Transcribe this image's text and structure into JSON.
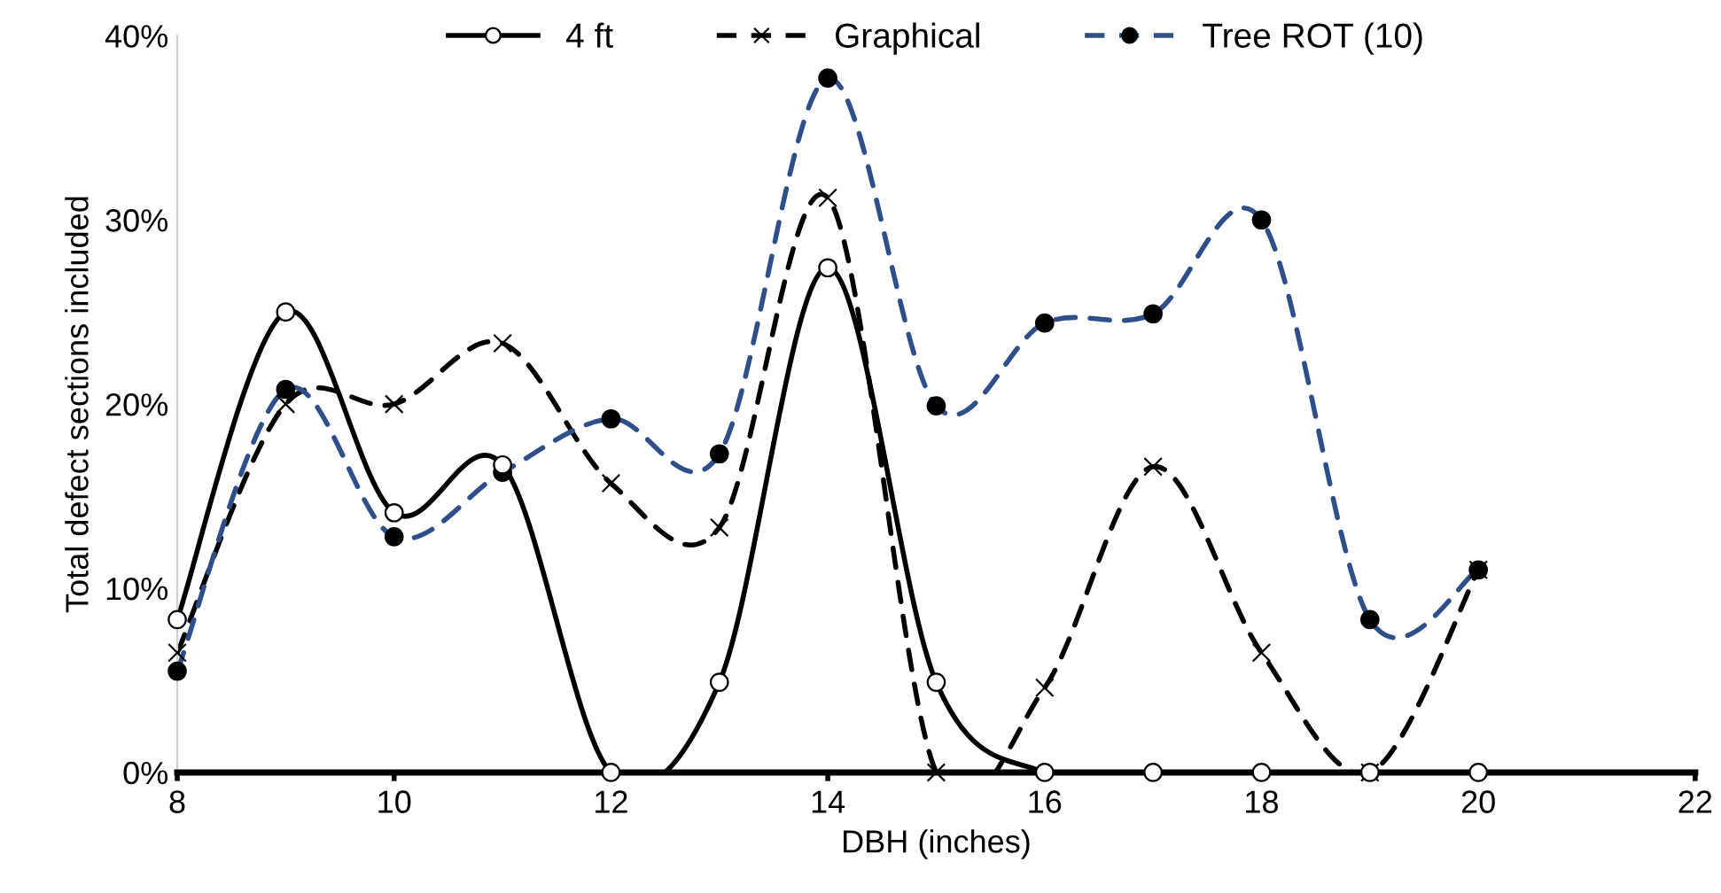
{
  "chart_data": {
    "type": "line",
    "xlabel": "DBH (inches)",
    "ylabel": "Total defect sections included",
    "x": [
      8,
      9,
      10,
      11,
      12,
      13,
      14,
      15,
      16,
      17,
      18,
      19,
      20
    ],
    "series": [
      {
        "name": "4 ft",
        "color": "#000000",
        "marker": "circle",
        "line_style": "solid",
        "values": [
          8.3,
          25,
          14.1,
          16.7,
          0,
          4.9,
          27.4,
          4.9,
          0,
          0,
          0,
          0,
          0
        ]
      },
      {
        "name": "Graphical",
        "color": "#000000",
        "marker": "cross",
        "line_style": "dashed",
        "values": [
          6.5,
          20,
          20,
          23.3,
          15.7,
          13.3,
          31.2,
          0,
          4.6,
          16.6,
          6.5,
          0,
          11
        ]
      },
      {
        "name": "Tree ROT (10)",
        "color": "#2f4f8a",
        "marker": "circle",
        "line_style": "dashed",
        "values": [
          5.5,
          20.8,
          12.8,
          16.3,
          19.2,
          17.3,
          37.7,
          19.9,
          24.4,
          24.9,
          30,
          8.3,
          11
        ]
      }
    ],
    "xlim": [
      8,
      22
    ],
    "xticks": [
      8,
      10,
      12,
      14,
      16,
      18,
      20,
      22
    ],
    "ylim": [
      0,
      40
    ],
    "yticks": [
      {
        "value": 0,
        "label": "0%"
      },
      {
        "value": 10,
        "label": "10%"
      },
      {
        "value": 20,
        "label": "20%"
      },
      {
        "value": 30,
        "label": "30%"
      },
      {
        "value": 40,
        "label": "40%"
      }
    ],
    "grid": false,
    "legend": "top"
  }
}
